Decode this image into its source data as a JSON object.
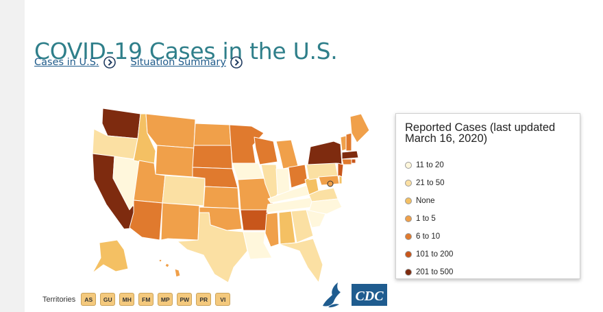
{
  "header": {
    "title": "COVID-19 Cases in the U.S.",
    "links": [
      {
        "label": "Cases in U.S. "
      },
      {
        "label": "Situation Summary "
      }
    ]
  },
  "colors": {
    "title": "#2f7f8a",
    "link": "#1e5a8a",
    "map_stroke": "#ffffff"
  },
  "legend": {
    "title": "Reported Cases (last updated March 16, 2020)",
    "items": [
      {
        "label": "11 to 20",
        "color": "#fff7dc"
      },
      {
        "label": "21 to 50",
        "color": "#fbe0a3"
      },
      {
        "label": "None",
        "color": "#f4c063"
      },
      {
        "label": "1 to 5",
        "color": "#f0a04a"
      },
      {
        "label": "6 to 10",
        "color": "#e07a2e"
      },
      {
        "label": "101 to 200",
        "color": "#c8561b"
      },
      {
        "label": "201 to 500",
        "color": "#7e2b0f"
      }
    ]
  },
  "territories": {
    "label": "Territories",
    "items": [
      "AS",
      "GU",
      "MH",
      "FM",
      "MP",
      "PW",
      "PR",
      "VI"
    ]
  },
  "logos": {
    "cdc": "CDC",
    "hhs": "hhs-eagle"
  }
}
